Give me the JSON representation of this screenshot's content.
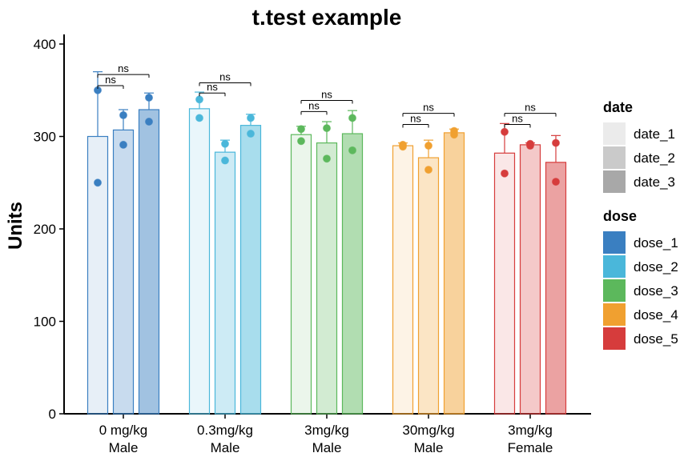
{
  "chart_data": {
    "type": "bar",
    "title": "t.test example",
    "xlabel": "",
    "ylabel": "Units",
    "ylim": [
      0,
      400
    ],
    "yticks": [
      0,
      100,
      200,
      300,
      400
    ],
    "grid": false,
    "legend_placement": "right",
    "categories": [
      {
        "line1": "0 mg/kg",
        "line2": "Male",
        "color": "#3a7fc1"
      },
      {
        "line1": "0.3mg/kg",
        "line2": "Male",
        "color": "#4ab7da"
      },
      {
        "line1": "3mg/kg",
        "line2": "Male",
        "color": "#5cb85c"
      },
      {
        "line1": "30mg/kg",
        "line2": "Male",
        "color": "#f0a030"
      },
      {
        "line1": "3mg/kg",
        "line2": "Female",
        "color": "#d63c3c"
      }
    ],
    "date_levels": [
      "date_1",
      "date_2",
      "date_3"
    ],
    "date_fill_alpha": [
      0.12,
      0.28,
      0.48
    ],
    "bars": [
      [
        {
          "mean": 300,
          "err_hi": 370,
          "points": [
            350,
            250
          ]
        },
        {
          "mean": 307,
          "err_hi": 329,
          "points": [
            323,
            291
          ]
        },
        {
          "mean": 329,
          "err_hi": 347,
          "points": [
            342,
            316
          ]
        }
      ],
      [
        {
          "mean": 330,
          "err_hi": 348,
          "points": [
            340,
            320
          ]
        },
        {
          "mean": 283,
          "err_hi": 296,
          "points": [
            292,
            274
          ]
        },
        {
          "mean": 312,
          "err_hi": 324,
          "points": [
            320,
            303
          ]
        }
      ],
      [
        {
          "mean": 302,
          "err_hi": 311,
          "points": [
            308,
            295
          ]
        },
        {
          "mean": 293,
          "err_hi": 316,
          "points": [
            309,
            276
          ]
        },
        {
          "mean": 303,
          "err_hi": 328,
          "points": [
            320,
            285
          ]
        }
      ],
      [
        {
          "mean": 290,
          "err_hi": 293,
          "points": [
            291,
            289
          ]
        },
        {
          "mean": 277,
          "err_hi": 296,
          "points": [
            290,
            264
          ]
        },
        {
          "mean": 304,
          "err_hi": 308,
          "points": [
            306,
            302
          ]
        }
      ],
      [
        {
          "mean": 282,
          "err_hi": 314,
          "points": [
            305,
            260
          ]
        },
        {
          "mean": 291,
          "err_hi": 293,
          "points": [
            292,
            290
          ]
        },
        {
          "mean": 272,
          "err_hi": 301,
          "points": [
            293,
            251
          ]
        }
      ]
    ],
    "comparisons": [
      {
        "label": "ns",
        "from": 0,
        "to": 1,
        "level": 0
      },
      {
        "label": "ns",
        "from": 0,
        "to": 2,
        "level": 1
      }
    ],
    "comparison_heights": [
      [
        355,
        367
      ],
      [
        347,
        358
      ],
      [
        327,
        339
      ],
      [
        313,
        325
      ],
      [
        313,
        325
      ]
    ],
    "legend": {
      "date_title": "date",
      "date_items": [
        {
          "label": "date_1",
          "color": "#ebebeb"
        },
        {
          "label": "date_2",
          "color": "#cacaca"
        },
        {
          "label": "date_3",
          "color": "#a8a8a8"
        }
      ],
      "dose_title": "dose",
      "dose_items": [
        {
          "label": "dose_1",
          "color": "#3a7fc1"
        },
        {
          "label": "dose_2",
          "color": "#4ab7da"
        },
        {
          "label": "dose_3",
          "color": "#5cb85c"
        },
        {
          "label": "dose_4",
          "color": "#f0a030"
        },
        {
          "label": "dose_5",
          "color": "#d63c3c"
        }
      ]
    }
  }
}
